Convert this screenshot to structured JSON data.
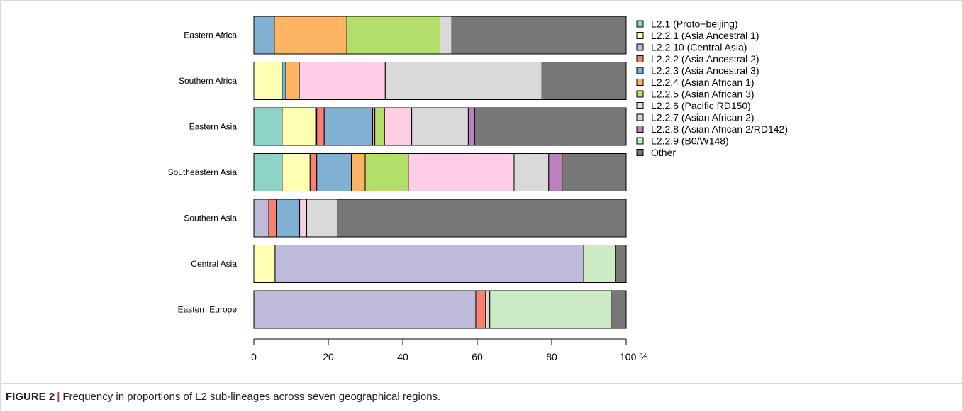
{
  "caption": {
    "label": "FIGURE 2",
    "separator": "|",
    "text": "Frequency in proportions of L2 sub-lineages across seven geographical regions."
  },
  "chart_data": {
    "type": "bar",
    "orientation": "horizontal",
    "stacked": true,
    "title": "",
    "xlabel": "",
    "ylabel": "",
    "x_unit": "%",
    "xlim": [
      0,
      100
    ],
    "x_ticks": [
      0,
      20,
      40,
      60,
      80,
      100
    ],
    "x_tick_labels": [
      "0",
      "20",
      "40",
      "60",
      "80",
      "100 %"
    ],
    "legend_position": "right",
    "categories": [
      "Eastern Africa",
      "Southern Africa",
      "Eastern Asia",
      "Southeastern Asia",
      "Southern Asia",
      "Central Asia",
      "Eastern Europe"
    ],
    "series": [
      {
        "name": "L2.1 (Proto−beijing)",
        "color": "#8DD3C7",
        "values": [
          0,
          0,
          7.6,
          7.6,
          0,
          0,
          0
        ]
      },
      {
        "name": "L2.2.1 (Asia Ancestral 1)",
        "color": "#FFFFB3",
        "values": [
          0,
          7.6,
          9.0,
          7.5,
          0,
          5.7,
          0
        ]
      },
      {
        "name": "L2.2.10 (Central Asia)",
        "color": "#BEBADA",
        "values": [
          0,
          0,
          0.3,
          0,
          4.0,
          82.9,
          58.6
        ]
      },
      {
        "name": "L2.2.2 (Asia Ancestral 2)",
        "color": "#FB8072",
        "values": [
          0,
          0,
          2.0,
          1.8,
          2.0,
          0,
          2.6
        ]
      },
      {
        "name": "L2.2.3 (Asia Ancestral 3)",
        "color": "#80B1D3",
        "values": [
          5.5,
          1.0,
          13.0,
          9.3,
          6.3,
          0,
          0
        ]
      },
      {
        "name": "L2.2.4 (Asian African 1)",
        "color": "#FDB462",
        "values": [
          19.5,
          3.6,
          0.6,
          3.7,
          0,
          0,
          0
        ]
      },
      {
        "name": "L2.2.5 (Asian African 3)",
        "color": "#B3DE69",
        "values": [
          25.0,
          0,
          2.6,
          11.6,
          0,
          0,
          0
        ]
      },
      {
        "name": "L2.2.6 (Pacific RD150)",
        "color": "#FCCDE5",
        "values": [
          0,
          23.1,
          7.3,
          28.4,
          1.9,
          0,
          0
        ]
      },
      {
        "name": "L2.2.7 (Asian African 2)",
        "color": "#D9D9D9",
        "values": [
          3.2,
          42.1,
          15.2,
          9.3,
          8.3,
          0,
          1.1
        ]
      },
      {
        "name": "L2.2.8 (Asian African 2/RD142)",
        "color": "#BC80BD",
        "values": [
          0,
          0,
          1.7,
          3.6,
          0,
          0,
          0
        ]
      },
      {
        "name": "L2.2.9 (B0/W148)",
        "color": "#CCEBC5",
        "values": [
          0,
          0,
          0,
          0,
          0,
          8.5,
          32.0
        ]
      },
      {
        "name": "Other",
        "color": "#777777",
        "values": [
          46.8,
          22.6,
          40.7,
          17.2,
          77.5,
          2.9,
          4.0
        ]
      }
    ]
  }
}
